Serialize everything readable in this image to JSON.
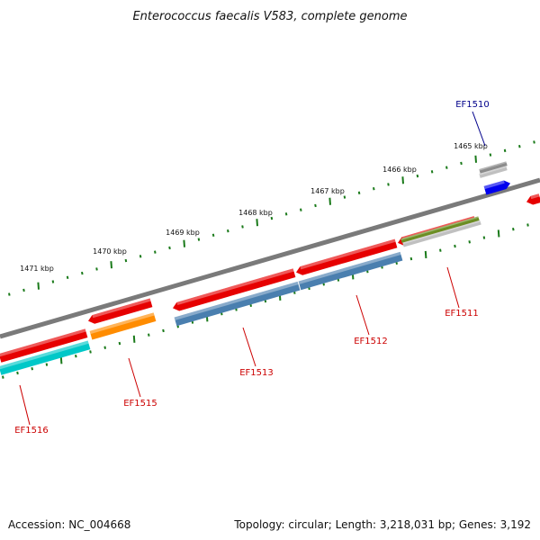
{
  "title": "Enterococcus faecalis V583, complete genome",
  "footer": {
    "accession": "Accession: NC_004668",
    "summary": "Topology: circular; Length: 3,218,031 bp; Genes: 3,192"
  },
  "colors": {
    "backbone": "#7a7a7a",
    "tick": "#1a7a1a",
    "label_red": "#cc0000",
    "label_blue": "#00008b",
    "cds_red": "#e60000",
    "orange": "#ff8c00",
    "cyan": "#00c8c8",
    "steelblue": "#4a7faf",
    "olive": "#6b8e23",
    "silver": "#c0c0c0",
    "gray": "#8c8c8c",
    "blue": "#0000ee"
  },
  "tick_labels": [
    {
      "text": "1465 kbp"
    },
    {
      "text": "1466 kbp"
    },
    {
      "text": "1467 kbp"
    },
    {
      "text": "1468 kbp"
    },
    {
      "text": "1469 kbp"
    },
    {
      "text": "1470 kbp"
    },
    {
      "text": "1471 kbp"
    }
  ],
  "gene_labels": [
    {
      "text": "EF1510",
      "color": "label_blue"
    },
    {
      "text": "EF1511",
      "color": "label_red"
    },
    {
      "text": "EF1512",
      "color": "label_red"
    },
    {
      "text": "EF1513",
      "color": "label_red"
    },
    {
      "text": "EF1515",
      "color": "label_red"
    },
    {
      "text": "EF1516",
      "color": "label_red"
    }
  ]
}
